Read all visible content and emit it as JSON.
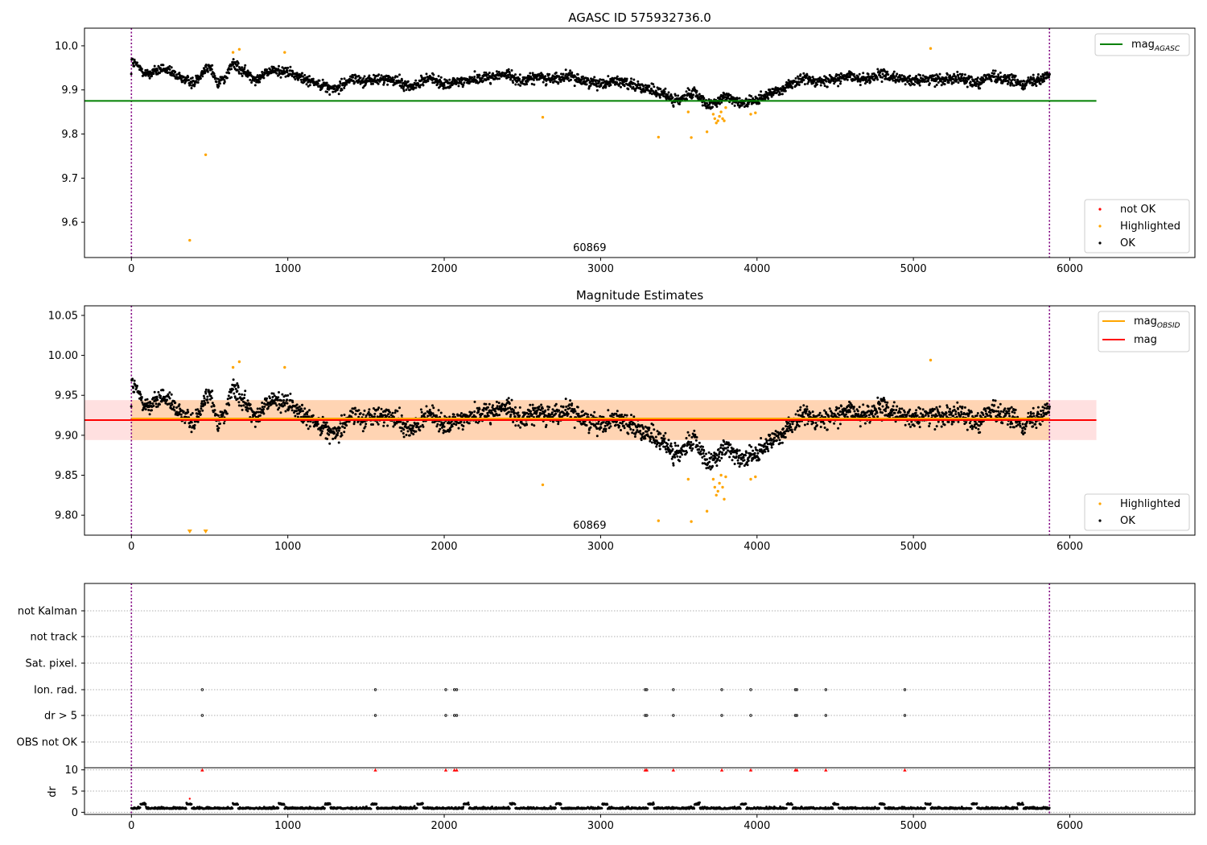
{
  "chart_data": [
    {
      "type": "scatter",
      "title": "AGASC ID 575932736.0",
      "xlim": [
        -300,
        6800
      ],
      "ylim": [
        9.52,
        10.04
      ],
      "x_ticks": [
        0,
        1000,
        2000,
        3000,
        4000,
        5000,
        6000
      ],
      "y_ticks": [
        9.6,
        9.7,
        9.8,
        9.9,
        10.0
      ],
      "y_tick_labels": [
        "9.6",
        "9.7",
        "9.8",
        "9.9",
        "10.0"
      ],
      "vlines": [
        0,
        5870
      ],
      "annotation": {
        "text": "60869",
        "x": 2930
      },
      "hlines": [
        {
          "name": "mag",
          "sub": "AGASC",
          "y": 9.875,
          "x0": -300,
          "x1": 6170,
          "color": "#008000"
        }
      ],
      "scatter_legend": [
        {
          "name": "not OK",
          "color": "#ff0000"
        },
        {
          "name": "Highlighted",
          "color": "#ffa500"
        },
        {
          "name": "OK",
          "color": "#000000"
        }
      ],
      "line_legend_position": "upper right",
      "scatter_legend_position": "lower right",
      "series": [
        {
          "name": "OK",
          "color": "#000000",
          "trend": [
            [
              0,
              9.965
            ],
            [
              100,
              9.935
            ],
            [
              200,
              9.948
            ],
            [
              300,
              9.93
            ],
            [
              400,
              9.915
            ],
            [
              450,
              9.94
            ],
            [
              500,
              9.955
            ],
            [
              550,
              9.915
            ],
            [
              600,
              9.93
            ],
            [
              650,
              9.96
            ],
            [
              700,
              9.945
            ],
            [
              800,
              9.925
            ],
            [
              900,
              9.945
            ],
            [
              1000,
              9.94
            ],
            [
              1100,
              9.925
            ],
            [
              1200,
              9.915
            ],
            [
              1300,
              9.9
            ],
            [
              1400,
              9.925
            ],
            [
              1500,
              9.92
            ],
            [
              1600,
              9.925
            ],
            [
              1700,
              9.92
            ],
            [
              1800,
              9.905
            ],
            [
              1900,
              9.93
            ],
            [
              2000,
              9.91
            ],
            [
              2100,
              9.92
            ],
            [
              2200,
              9.925
            ],
            [
              2300,
              9.93
            ],
            [
              2400,
              9.935
            ],
            [
              2500,
              9.92
            ],
            [
              2600,
              9.93
            ],
            [
              2700,
              9.925
            ],
            [
              2800,
              9.93
            ],
            [
              2900,
              9.92
            ],
            [
              3000,
              9.915
            ],
            [
              3100,
              9.92
            ],
            [
              3200,
              9.915
            ],
            [
              3300,
              9.9
            ],
            [
              3400,
              9.89
            ],
            [
              3500,
              9.875
            ],
            [
              3600,
              9.895
            ],
            [
              3700,
              9.862
            ],
            [
              3800,
              9.885
            ],
            [
              3900,
              9.872
            ],
            [
              4000,
              9.875
            ],
            [
              4100,
              9.895
            ],
            [
              4200,
              9.91
            ],
            [
              4300,
              9.925
            ],
            [
              4400,
              9.92
            ],
            [
              4500,
              9.925
            ],
            [
              4600,
              9.93
            ],
            [
              4700,
              9.925
            ],
            [
              4800,
              9.935
            ],
            [
              4900,
              9.925
            ],
            [
              5000,
              9.92
            ],
            [
              5100,
              9.925
            ],
            [
              5200,
              9.925
            ],
            [
              5300,
              9.93
            ],
            [
              5400,
              9.915
            ],
            [
              5500,
              9.93
            ],
            [
              5600,
              9.925
            ],
            [
              5700,
              9.915
            ],
            [
              5800,
              9.925
            ],
            [
              5870,
              9.935
            ]
          ],
          "x_range": [
            0,
            5870
          ],
          "spread": 0.012
        },
        {
          "name": "Highlighted",
          "color": "#ffa500",
          "points": [
            [
              373,
              9.559
            ],
            [
              475,
              9.753
            ],
            [
              650,
              9.985
            ],
            [
              690,
              9.992
            ],
            [
              980,
              9.985
            ],
            [
              2630,
              9.838
            ],
            [
              3370,
              9.793
            ],
            [
              3560,
              9.85
            ],
            [
              3580,
              9.792
            ],
            [
              3680,
              9.805
            ],
            [
              3720,
              9.845
            ],
            [
              3730,
              9.835
            ],
            [
              3740,
              9.825
            ],
            [
              3750,
              9.83
            ],
            [
              3760,
              9.84
            ],
            [
              3770,
              9.85
            ],
            [
              3780,
              9.835
            ],
            [
              3790,
              9.83
            ],
            [
              3800,
              9.86
            ],
            [
              3960,
              9.845
            ],
            [
              3990,
              9.848
            ],
            [
              5110,
              9.994
            ]
          ]
        }
      ]
    },
    {
      "type": "scatter",
      "title": "Magnitude Estimates",
      "xlim": [
        -300,
        6800
      ],
      "ylim": [
        9.775,
        10.062
      ],
      "x_ticks": [
        0,
        1000,
        2000,
        3000,
        4000,
        5000,
        6000
      ],
      "y_ticks": [
        9.8,
        9.85,
        9.9,
        9.95,
        10.0,
        10.05
      ],
      "y_tick_labels": [
        "9.80",
        "9.85",
        "9.90",
        "9.95",
        "10.00",
        "10.05"
      ],
      "vlines": [
        0,
        5870
      ],
      "annotation": {
        "text": "60869",
        "x": 2930
      },
      "bands": [
        {
          "y0": 9.894,
          "y1": 9.944,
          "x0": -300,
          "x1": 6170,
          "color": "#ff0000",
          "opacity": 0.12
        },
        {
          "y0": 9.894,
          "y1": 9.944,
          "x0": 0,
          "x1": 5870,
          "color": "#ffa500",
          "opacity": 0.2
        }
      ],
      "hlines": [
        {
          "name": "mag",
          "sub": "OBSID",
          "y": 9.921,
          "x0": 0,
          "x1": 5870,
          "color": "#ffa500"
        },
        {
          "name": "mag",
          "sub": "",
          "y": 9.919,
          "x0": -300,
          "x1": 6170,
          "color": "#ff0000"
        }
      ],
      "scatter_legend": [
        {
          "name": "Highlighted",
          "color": "#ffa500"
        },
        {
          "name": "OK",
          "color": "#000000"
        }
      ],
      "line_legend_position": "upper right",
      "scatter_legend_position": "lower right",
      "triangles": [
        373,
        475
      ],
      "series": [
        {
          "name": "OK",
          "color": "#000000",
          "trend": [
            [
              0,
              9.965
            ],
            [
              100,
              9.935
            ],
            [
              200,
              9.948
            ],
            [
              300,
              9.93
            ],
            [
              400,
              9.915
            ],
            [
              450,
              9.94
            ],
            [
              500,
              9.955
            ],
            [
              550,
              9.915
            ],
            [
              600,
              9.93
            ],
            [
              650,
              9.96
            ],
            [
              700,
              9.945
            ],
            [
              800,
              9.925
            ],
            [
              900,
              9.945
            ],
            [
              1000,
              9.94
            ],
            [
              1100,
              9.925
            ],
            [
              1200,
              9.915
            ],
            [
              1300,
              9.9
            ],
            [
              1400,
              9.925
            ],
            [
              1500,
              9.92
            ],
            [
              1600,
              9.925
            ],
            [
              1700,
              9.92
            ],
            [
              1800,
              9.905
            ],
            [
              1900,
              9.93
            ],
            [
              2000,
              9.91
            ],
            [
              2100,
              9.92
            ],
            [
              2200,
              9.925
            ],
            [
              2300,
              9.93
            ],
            [
              2400,
              9.935
            ],
            [
              2500,
              9.92
            ],
            [
              2600,
              9.93
            ],
            [
              2700,
              9.925
            ],
            [
              2800,
              9.93
            ],
            [
              2900,
              9.92
            ],
            [
              3000,
              9.915
            ],
            [
              3100,
              9.92
            ],
            [
              3200,
              9.915
            ],
            [
              3300,
              9.9
            ],
            [
              3400,
              9.89
            ],
            [
              3500,
              9.875
            ],
            [
              3600,
              9.895
            ],
            [
              3700,
              9.862
            ],
            [
              3800,
              9.885
            ],
            [
              3900,
              9.872
            ],
            [
              4000,
              9.875
            ],
            [
              4100,
              9.895
            ],
            [
              4200,
              9.91
            ],
            [
              4300,
              9.925
            ],
            [
              4400,
              9.92
            ],
            [
              4500,
              9.925
            ],
            [
              4600,
              9.93
            ],
            [
              4700,
              9.925
            ],
            [
              4800,
              9.935
            ],
            [
              4900,
              9.925
            ],
            [
              5000,
              9.92
            ],
            [
              5100,
              9.925
            ],
            [
              5200,
              9.925
            ],
            [
              5300,
              9.93
            ],
            [
              5400,
              9.915
            ],
            [
              5500,
              9.93
            ],
            [
              5600,
              9.925
            ],
            [
              5700,
              9.915
            ],
            [
              5800,
              9.925
            ],
            [
              5870,
              9.935
            ]
          ],
          "x_range": [
            0,
            5870
          ],
          "spread": 0.012
        },
        {
          "name": "Highlighted",
          "color": "#ffa500",
          "points": [
            [
              650,
              9.985
            ],
            [
              690,
              9.992
            ],
            [
              980,
              9.985
            ],
            [
              2630,
              9.838
            ],
            [
              3370,
              9.793
            ],
            [
              3560,
              9.845
            ],
            [
              3580,
              9.792
            ],
            [
              3680,
              9.805
            ],
            [
              3720,
              9.845
            ],
            [
              3730,
              9.835
            ],
            [
              3740,
              9.825
            ],
            [
              3750,
              9.83
            ],
            [
              3760,
              9.84
            ],
            [
              3770,
              9.85
            ],
            [
              3780,
              9.835
            ],
            [
              3790,
              9.82
            ],
            [
              3800,
              9.848
            ],
            [
              3960,
              9.845
            ],
            [
              3990,
              9.848
            ],
            [
              5110,
              9.994
            ]
          ]
        }
      ]
    },
    {
      "type": "scatter",
      "title": "",
      "xlim": [
        -300,
        6800
      ],
      "x_ticks": [
        0,
        1000,
        2000,
        3000,
        4000,
        5000,
        6000
      ],
      "vlines": [
        0,
        5870
      ],
      "flag_rows": [
        "not Kalman",
        "not track",
        "Sat. pixel.",
        "Ion. rad.",
        "dr > 5",
        "OBS not OK"
      ],
      "flag_points": {
        "Ion. rad.": [
          453,
          1560,
          2010,
          2065,
          2080,
          3285,
          3295,
          3465,
          3775,
          3960,
          4245,
          4255,
          4440,
          4945
        ],
        "dr > 5": [
          453,
          1560,
          2010,
          2065,
          2080,
          3285,
          3295,
          3465,
          3775,
          3960,
          4245,
          4255,
          4440,
          4945
        ]
      },
      "dr_panel": {
        "ylabel": "dr",
        "ylim": [
          -0.5,
          10.5
        ],
        "y_ticks": [
          0,
          5,
          10
        ],
        "y_tick_labels": [
          "0",
          "5",
          "10"
        ],
        "clipped_at": 10,
        "clipped_x": [
          453,
          1560,
          2010,
          2065,
          2080,
          3285,
          3295,
          3465,
          3775,
          3960,
          4245,
          4255,
          4440,
          4945
        ],
        "outlier_points": [
          [
            373,
            3.2
          ]
        ],
        "baseline": 0.8,
        "spread": 0.5
      }
    }
  ]
}
